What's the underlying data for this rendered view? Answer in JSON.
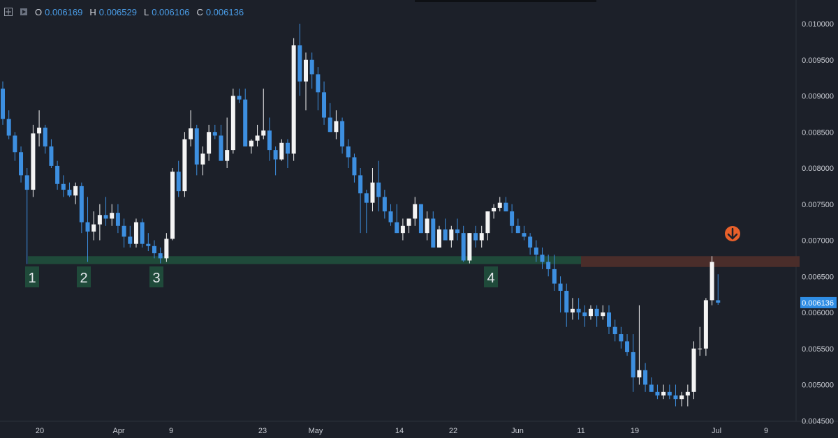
{
  "header": {
    "open_label": "O",
    "open": "0.006169",
    "high_label": "H",
    "high": "0.006529",
    "low_label": "L",
    "low": "0.006106",
    "close_label": "C",
    "close": "0.006136"
  },
  "colors": {
    "background": "#1c2029",
    "up": "#f4f4f4",
    "down": "#3d8fe0",
    "axis_text": "#c9ccd3",
    "support_zone": "#1f4a3a",
    "resistance_zone": "#4a2d2a",
    "marker_bg": "#1f4a3a",
    "arrow": "#e8602a",
    "price_tag": "#2f8de4"
  },
  "chart_data": {
    "type": "candlestick",
    "ylim": [
      0.0044,
      0.0102
    ],
    "y_ticks": [
      "0.010000",
      "0.009500",
      "0.009000",
      "0.008500",
      "0.008000",
      "0.007500",
      "0.007000",
      "0.006500",
      "0.006000",
      "0.005500",
      "0.005000",
      "0.004500"
    ],
    "x_ticks": [
      "20",
      "Apr",
      "9",
      "23",
      "May",
      "14",
      "22",
      "Jun",
      "11",
      "19",
      "Jul",
      "9"
    ],
    "last_price_label": "0.006136",
    "support_zone": [
      0.00667,
      0.00678
    ],
    "resistance_zone": [
      0.00663,
      0.00678
    ],
    "markers": [
      "1",
      "2",
      "3",
      "4"
    ],
    "candles": [
      [
        0.0091,
        0.0092,
        0.0086,
        0.00868
      ],
      [
        0.00868,
        0.0088,
        0.0084,
        0.00845
      ],
      [
        0.00845,
        0.0085,
        0.0081,
        0.00822
      ],
      [
        0.00822,
        0.0083,
        0.0078,
        0.0079
      ],
      [
        0.0079,
        0.008,
        0.00667,
        0.0077
      ],
      [
        0.0077,
        0.0086,
        0.0076,
        0.00848
      ],
      [
        0.00848,
        0.0088,
        0.0083,
        0.00856
      ],
      [
        0.00856,
        0.0086,
        0.0082,
        0.0083
      ],
      [
        0.0083,
        0.0084,
        0.008,
        0.00803
      ],
      [
        0.00803,
        0.0081,
        0.0077,
        0.00778
      ],
      [
        0.00778,
        0.0079,
        0.0076,
        0.0077
      ],
      [
        0.0077,
        0.0078,
        0.0076,
        0.00762
      ],
      [
        0.00762,
        0.0078,
        0.0075,
        0.00775
      ],
      [
        0.00775,
        0.0078,
        0.0071,
        0.00725
      ],
      [
        0.00725,
        0.0076,
        0.0067,
        0.00712
      ],
      [
        0.00712,
        0.0074,
        0.007,
        0.00722
      ],
      [
        0.00722,
        0.0075,
        0.007,
        0.00735
      ],
      [
        0.00735,
        0.0076,
        0.0072,
        0.0073
      ],
      [
        0.0073,
        0.0075,
        0.0072,
        0.00738
      ],
      [
        0.00738,
        0.0075,
        0.0071,
        0.0072
      ],
      [
        0.0072,
        0.0073,
        0.0069,
        0.00705
      ],
      [
        0.00705,
        0.0072,
        0.0069,
        0.00695
      ],
      [
        0.00695,
        0.0073,
        0.0069,
        0.00725
      ],
      [
        0.00725,
        0.0073,
        0.0069,
        0.00695
      ],
      [
        0.00695,
        0.0071,
        0.00685,
        0.00692
      ],
      [
        0.00692,
        0.007,
        0.00675,
        0.00682
      ],
      [
        0.00682,
        0.0069,
        0.00668,
        0.00675
      ],
      [
        0.00675,
        0.0071,
        0.0067,
        0.00702
      ],
      [
        0.00702,
        0.008,
        0.007,
        0.00795
      ],
      [
        0.00795,
        0.0081,
        0.0076,
        0.00768
      ],
      [
        0.00768,
        0.0085,
        0.0076,
        0.0084
      ],
      [
        0.0084,
        0.0088,
        0.0083,
        0.00855
      ],
      [
        0.00855,
        0.0086,
        0.0079,
        0.00805
      ],
      [
        0.00805,
        0.0083,
        0.0079,
        0.0082
      ],
      [
        0.0082,
        0.0086,
        0.0081,
        0.0085
      ],
      [
        0.0085,
        0.0086,
        0.0084,
        0.00845
      ],
      [
        0.00845,
        0.0086,
        0.0081,
        0.0081
      ],
      [
        0.0081,
        0.0087,
        0.008,
        0.00825
      ],
      [
        0.00825,
        0.0091,
        0.0082,
        0.009
      ],
      [
        0.009,
        0.0091,
        0.0089,
        0.00895
      ],
      [
        0.00895,
        0.0091,
        0.0083,
        0.0083
      ],
      [
        0.0083,
        0.0084,
        0.0082,
        0.00838
      ],
      [
        0.00838,
        0.0086,
        0.0083,
        0.00845
      ],
      [
        0.00845,
        0.0091,
        0.0084,
        0.00852
      ],
      [
        0.00852,
        0.0087,
        0.0081,
        0.00825
      ],
      [
        0.00825,
        0.0083,
        0.0079,
        0.00812
      ],
      [
        0.00812,
        0.0084,
        0.0081,
        0.00835
      ],
      [
        0.00835,
        0.0084,
        0.008,
        0.0082
      ],
      [
        0.0082,
        0.0098,
        0.0081,
        0.0097
      ],
      [
        0.0097,
        0.01,
        0.009,
        0.0092
      ],
      [
        0.0092,
        0.0096,
        0.0088,
        0.0095
      ],
      [
        0.0095,
        0.0096,
        0.0091,
        0.0093
      ],
      [
        0.0093,
        0.0094,
        0.0088,
        0.00905
      ],
      [
        0.00905,
        0.0092,
        0.0086,
        0.0087
      ],
      [
        0.0087,
        0.0089,
        0.0085,
        0.0085
      ],
      [
        0.0085,
        0.0088,
        0.0084,
        0.00865
      ],
      [
        0.00865,
        0.0087,
        0.0082,
        0.0083
      ],
      [
        0.0083,
        0.0084,
        0.008,
        0.00815
      ],
      [
        0.00815,
        0.0082,
        0.0078,
        0.0079
      ],
      [
        0.0079,
        0.008,
        0.0071,
        0.00765
      ],
      [
        0.00765,
        0.0077,
        0.0071,
        0.00752
      ],
      [
        0.00752,
        0.008,
        0.0074,
        0.0078
      ],
      [
        0.0078,
        0.0081,
        0.0074,
        0.0076
      ],
      [
        0.0076,
        0.0077,
        0.0073,
        0.0074
      ],
      [
        0.0074,
        0.0075,
        0.0072,
        0.00725
      ],
      [
        0.00725,
        0.0075,
        0.0071,
        0.0071
      ],
      [
        0.0071,
        0.0073,
        0.007,
        0.0072
      ],
      [
        0.0072,
        0.0073,
        0.0071,
        0.0073
      ],
      [
        0.0073,
        0.0076,
        0.0072,
        0.0075
      ],
      [
        0.0075,
        0.0075,
        0.0071,
        0.0071
      ],
      [
        0.0071,
        0.0074,
        0.007,
        0.0073
      ],
      [
        0.0073,
        0.0074,
        0.0069,
        0.0069
      ],
      [
        0.0069,
        0.0072,
        0.0069,
        0.00715
      ],
      [
        0.00715,
        0.0073,
        0.007,
        0.007
      ],
      [
        0.007,
        0.0072,
        0.0069,
        0.00715
      ],
      [
        0.00715,
        0.0073,
        0.007,
        0.0071
      ],
      [
        0.0071,
        0.0072,
        0.0067,
        0.00672
      ],
      [
        0.00672,
        0.0071,
        0.00668,
        0.0071
      ],
      [
        0.0071,
        0.0072,
        0.0069,
        0.007
      ],
      [
        0.007,
        0.0072,
        0.0069,
        0.0071
      ],
      [
        0.0071,
        0.0074,
        0.007,
        0.0074
      ],
      [
        0.0074,
        0.0075,
        0.0073,
        0.00745
      ],
      [
        0.00745,
        0.0076,
        0.0074,
        0.00752
      ],
      [
        0.00752,
        0.0076,
        0.0074,
        0.0074
      ],
      [
        0.0074,
        0.0075,
        0.0071,
        0.0072
      ],
      [
        0.0072,
        0.0073,
        0.0071,
        0.0071
      ],
      [
        0.0071,
        0.0072,
        0.007,
        0.00705
      ],
      [
        0.00705,
        0.0071,
        0.0068,
        0.0069
      ],
      [
        0.0069,
        0.007,
        0.0067,
        0.0068
      ],
      [
        0.0068,
        0.0069,
        0.0066,
        0.0067
      ],
      [
        0.0067,
        0.0068,
        0.0065,
        0.0066
      ],
      [
        0.0066,
        0.0068,
        0.0063,
        0.0064
      ],
      [
        0.0064,
        0.0065,
        0.006,
        0.0063
      ],
      [
        0.0063,
        0.0064,
        0.0058,
        0.006
      ],
      [
        0.006,
        0.0062,
        0.0059,
        0.00605
      ],
      [
        0.00605,
        0.0062,
        0.0059,
        0.006
      ],
      [
        0.006,
        0.0061,
        0.0058,
        0.00595
      ],
      [
        0.00595,
        0.0061,
        0.0059,
        0.00605
      ],
      [
        0.00605,
        0.0061,
        0.0058,
        0.00595
      ],
      [
        0.00595,
        0.0061,
        0.0059,
        0.006
      ],
      [
        0.006,
        0.0061,
        0.0057,
        0.0058
      ],
      [
        0.0058,
        0.0059,
        0.0056,
        0.0057
      ],
      [
        0.0057,
        0.0058,
        0.0055,
        0.0056
      ],
      [
        0.0056,
        0.0057,
        0.0054,
        0.00545
      ],
      [
        0.00545,
        0.0057,
        0.0049,
        0.0051
      ],
      [
        0.0051,
        0.0061,
        0.005,
        0.0052
      ],
      [
        0.0052,
        0.0053,
        0.0049,
        0.005
      ],
      [
        0.005,
        0.0051,
        0.0049,
        0.0049
      ],
      [
        0.0049,
        0.005,
        0.0048,
        0.00485
      ],
      [
        0.00485,
        0.005,
        0.0048,
        0.0049
      ],
      [
        0.0049,
        0.005,
        0.0048,
        0.00485
      ],
      [
        0.00485,
        0.005,
        0.0047,
        0.0048
      ],
      [
        0.0048,
        0.0049,
        0.0047,
        0.00485
      ],
      [
        0.00485,
        0.005,
        0.0047,
        0.0049
      ],
      [
        0.0049,
        0.0056,
        0.0048,
        0.0055
      ],
      [
        0.0055,
        0.0058,
        0.0054,
        0.0055
      ],
      [
        0.0055,
        0.0062,
        0.0054,
        0.00617
      ],
      [
        0.00617,
        0.00678,
        0.0061,
        0.0067
      ],
      [
        0.006169,
        0.006529,
        0.006106,
        0.006136
      ]
    ]
  }
}
